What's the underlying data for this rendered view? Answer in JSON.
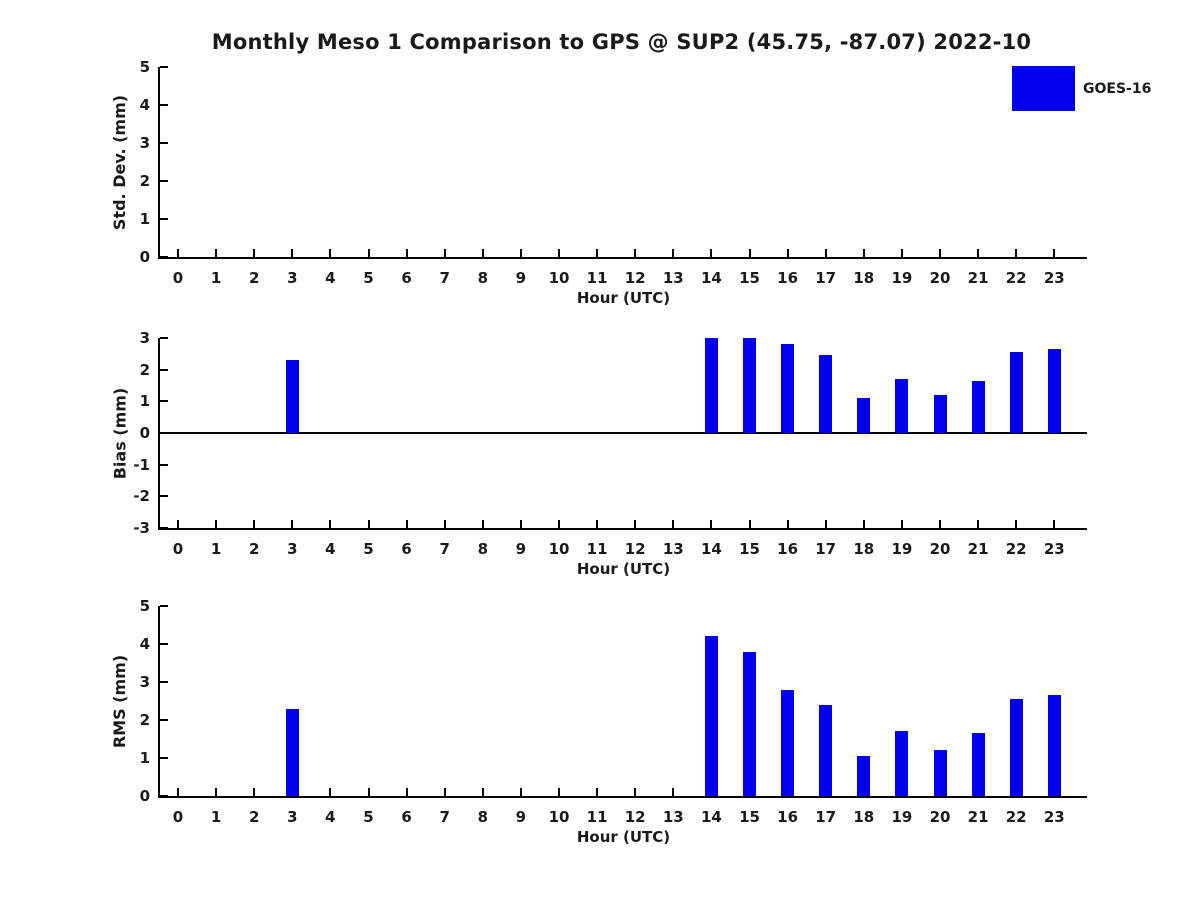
{
  "title": "Monthly Meso 1 Comparison to GPS @ SUP2 (45.75, -87.07) 2022-10",
  "legend": {
    "label": "GOES-16",
    "swatch_color": "#0000ee",
    "position": "top-right"
  },
  "colors": {
    "bar": "#0000ee",
    "axis": "#000000",
    "text": "#1a1a1a"
  },
  "chart_data": [
    {
      "type": "bar",
      "ylabel": "Std. Dev. (mm)",
      "xlabel": "Hour (UTC)",
      "ylim": [
        0,
        5
      ],
      "yticks": [
        0,
        1,
        2,
        3,
        4,
        5
      ],
      "grid": false,
      "zero_line": false,
      "categories": [
        0,
        1,
        2,
        3,
        4,
        5,
        6,
        7,
        8,
        9,
        10,
        11,
        12,
        13,
        14,
        15,
        16,
        17,
        18,
        19,
        20,
        21,
        22,
        23
      ],
      "values": [
        null,
        null,
        null,
        0,
        null,
        null,
        null,
        null,
        null,
        null,
        null,
        null,
        null,
        null,
        0,
        0,
        0,
        0,
        0,
        0,
        0,
        0,
        0,
        0
      ]
    },
    {
      "type": "bar",
      "ylabel": "Bias (mm)",
      "xlabel": "Hour (UTC)",
      "ylim": [
        -3,
        3
      ],
      "yticks": [
        -3,
        -2,
        -1,
        0,
        1,
        2,
        3
      ],
      "grid": false,
      "zero_line": true,
      "categories": [
        0,
        1,
        2,
        3,
        4,
        5,
        6,
        7,
        8,
        9,
        10,
        11,
        12,
        13,
        14,
        15,
        16,
        17,
        18,
        19,
        20,
        21,
        22,
        23
      ],
      "values": [
        null,
        null,
        null,
        2.3,
        null,
        null,
        null,
        null,
        null,
        null,
        null,
        null,
        null,
        null,
        3.0,
        3.0,
        2.8,
        2.45,
        1.1,
        1.7,
        1.2,
        1.65,
        2.55,
        2.65
      ]
    },
    {
      "type": "bar",
      "ylabel": "RMS (mm)",
      "xlabel": "Hour (UTC)",
      "ylim": [
        0,
        5
      ],
      "yticks": [
        0,
        1,
        2,
        3,
        4,
        5
      ],
      "grid": false,
      "zero_line": false,
      "categories": [
        0,
        1,
        2,
        3,
        4,
        5,
        6,
        7,
        8,
        9,
        10,
        11,
        12,
        13,
        14,
        15,
        16,
        17,
        18,
        19,
        20,
        21,
        22,
        23
      ],
      "values": [
        null,
        null,
        null,
        2.3,
        null,
        null,
        null,
        null,
        null,
        null,
        null,
        null,
        null,
        null,
        4.2,
        3.8,
        2.8,
        2.4,
        1.05,
        1.7,
        1.2,
        1.65,
        2.55,
        2.65
      ]
    }
  ]
}
